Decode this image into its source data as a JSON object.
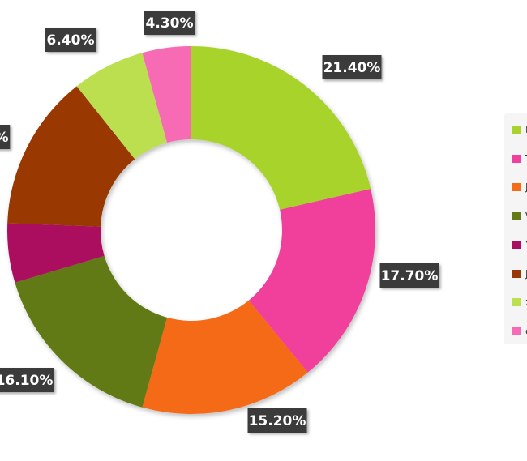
{
  "chart_data": {
    "type": "pie",
    "variant": "donut",
    "slices": [
      {
        "value": 21.4,
        "label": "21.40%",
        "color": "#a8d32a"
      },
      {
        "value": 17.7,
        "label": "17.70%",
        "color": "#f03f9c"
      },
      {
        "value": 15.2,
        "label": "15.20%",
        "color": "#f56b17"
      },
      {
        "value": 16.1,
        "label": "16.10%",
        "color": "#627a18"
      },
      {
        "value": 5.2,
        "label": "",
        "color": "#ab0e5f"
      },
      {
        "value": 13.7,
        "label": "%",
        "color": "#993706"
      },
      {
        "value": 6.4,
        "label": "6.40%",
        "color": "#bbdf4f"
      },
      {
        "value": 4.3,
        "label": "4.30%",
        "color": "#f76bb4"
      }
    ],
    "legend": {
      "placement": "right",
      "entries": [
        {
          "text": "F",
          "color": "#a8d32a"
        },
        {
          "text": "T",
          "color": "#f03f9c"
        },
        {
          "text": "J",
          "color": "#f56b17"
        },
        {
          "text": "V",
          "color": "#627a18"
        },
        {
          "text": "Y",
          "color": "#ab0e5f"
        },
        {
          "text": "J",
          "color": "#993706"
        },
        {
          "text": "x",
          "color": "#bbdf4f"
        },
        {
          "text": "c",
          "color": "#f76bb4"
        }
      ]
    }
  }
}
